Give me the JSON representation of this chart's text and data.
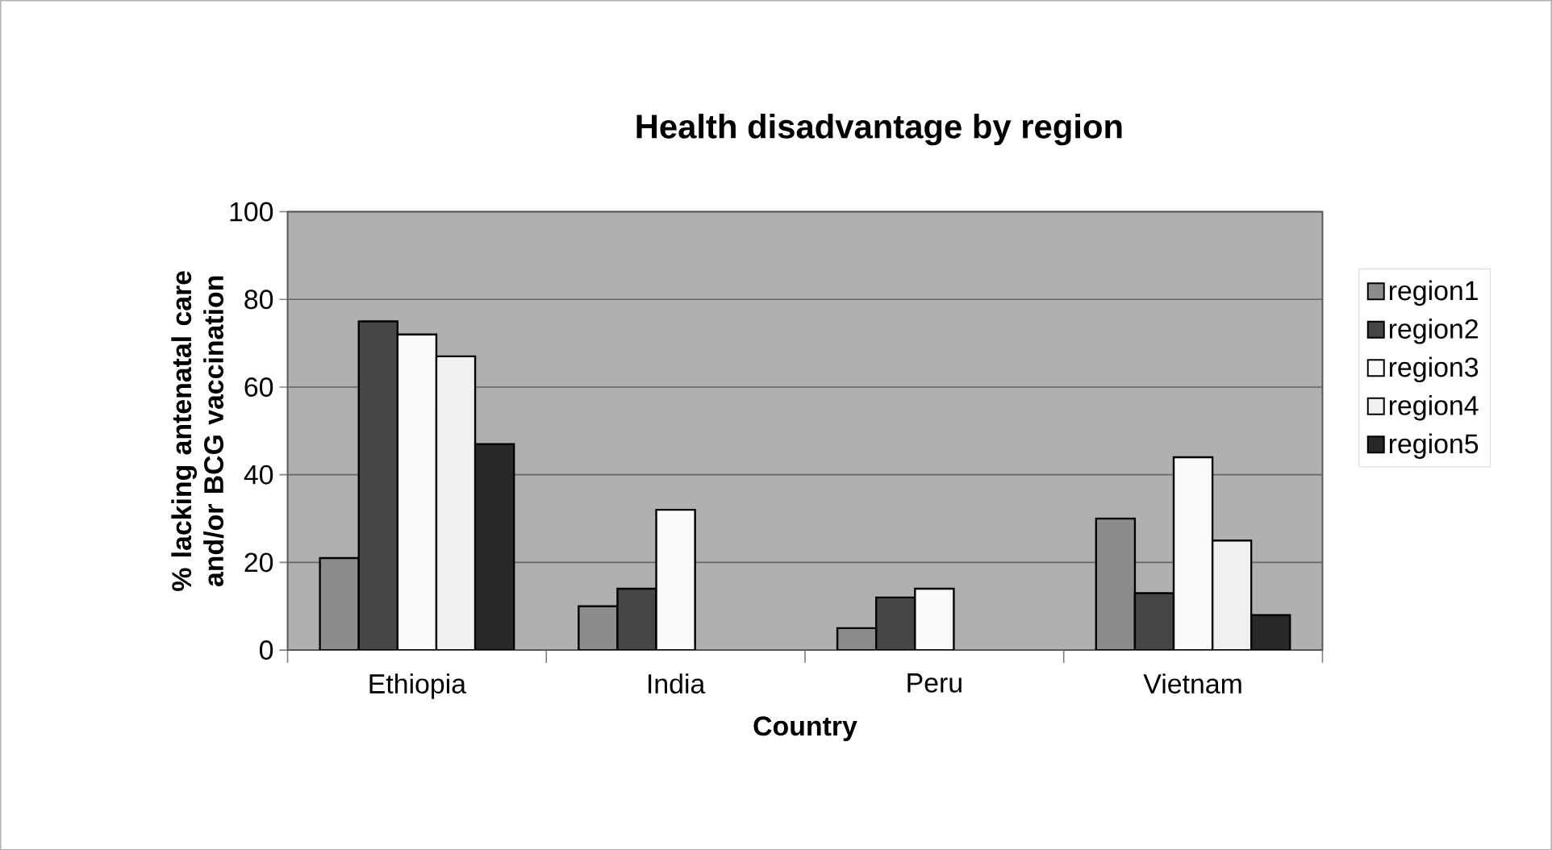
{
  "chart_data": {
    "type": "bar",
    "title": "Health disadvantage by region",
    "xlabel": "Country",
    "ylabel": "% lacking antenatal care and/or BCG vaccination",
    "categories": [
      "Ethiopia",
      "India",
      "Peru",
      "Vietnam"
    ],
    "series": [
      {
        "name": "region1",
        "color": "#8c8c8c",
        "values": [
          21,
          10,
          5,
          30
        ]
      },
      {
        "name": "region2",
        "color": "#464646",
        "values": [
          75,
          14,
          12,
          13
        ]
      },
      {
        "name": "region3",
        "color": "#fafafa",
        "values": [
          72,
          32,
          14,
          44
        ]
      },
      {
        "name": "region4",
        "color": "#f0f0f0",
        "values": [
          67,
          null,
          null,
          25
        ]
      },
      {
        "name": "region5",
        "color": "#282828",
        "values": [
          47,
          null,
          null,
          8
        ]
      }
    ],
    "ylim": [
      0,
      100
    ],
    "yticks": [
      0,
      20,
      40,
      60,
      80,
      100
    ],
    "grid": "y",
    "legend": "right"
  }
}
